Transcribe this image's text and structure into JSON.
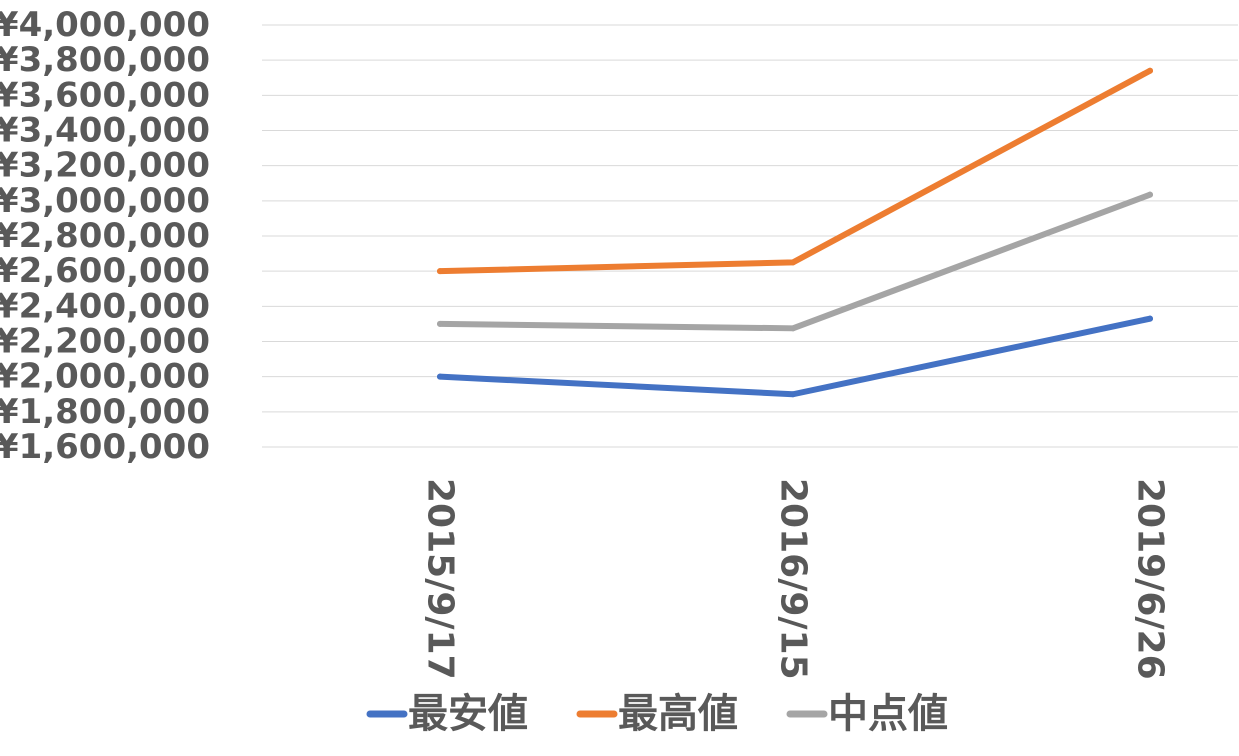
{
  "chart_data": {
    "type": "line",
    "title": "",
    "xlabel": "",
    "ylabel": "",
    "categories": [
      "2015/9/17",
      "2016/9/15",
      "2019/6/26"
    ],
    "ylim": [
      1600000,
      4000000
    ],
    "y_tick_step": 200000,
    "y_tick_labels": [
      "¥1,600,000",
      "¥1,800,000",
      "¥2,000,000",
      "¥2,200,000",
      "¥2,400,000",
      "¥2,600,000",
      "¥2,800,000",
      "¥3,000,000",
      "¥3,200,000",
      "¥3,400,000",
      "¥3,600,000",
      "¥3,800,000",
      "¥4,000,000"
    ],
    "grid": true,
    "legend_position": "bottom",
    "series": [
      {
        "name": "最安値",
        "color": "#4472c4",
        "values": [
          2000000,
          1900000,
          2330000
        ]
      },
      {
        "name": "最高値",
        "color": "#ed7d31",
        "values": [
          2600000,
          2650000,
          3740000
        ]
      },
      {
        "name": "中点値",
        "color": "#a5a5a5",
        "values": [
          2300000,
          2275000,
          3035000
        ]
      }
    ]
  }
}
